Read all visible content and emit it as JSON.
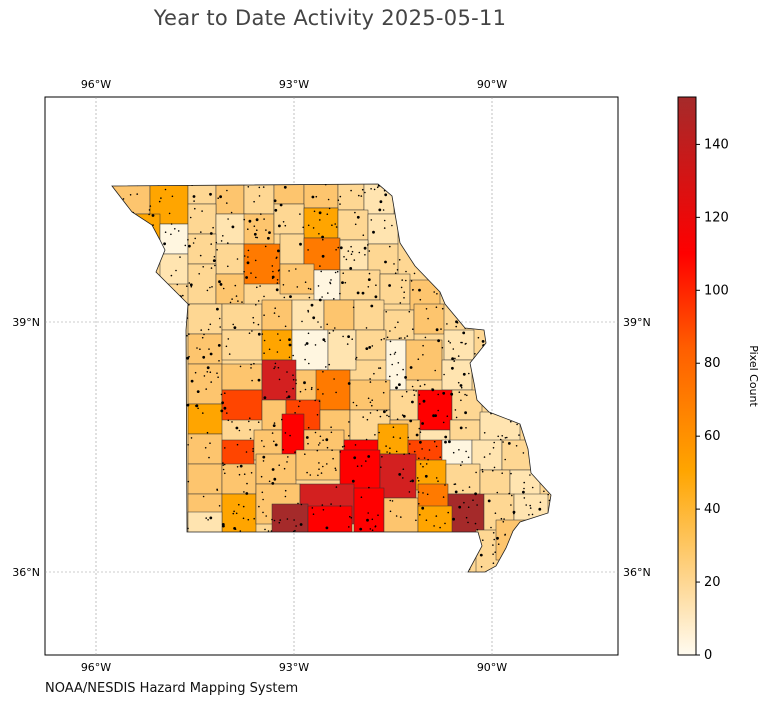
{
  "title": "Year to Date Activity 2025-05-11",
  "credit": "NOAA/NESDIS Hazard Mapping System",
  "map": {
    "lon_ticks": [
      "96°W",
      "93°W",
      "90°W"
    ],
    "lat_ticks": [
      "39°N",
      "36°N"
    ],
    "colorbar": {
      "label": "Pixel Count",
      "ticks": [
        "0",
        "20",
        "40",
        "60",
        "80",
        "100",
        "120",
        "140"
      ],
      "max": 153,
      "colors": [
        "#fffbf0",
        "#fed793",
        "#ffa500",
        "#ff5e00",
        "#ff0000",
        "#a52a2a"
      ]
    }
  }
}
